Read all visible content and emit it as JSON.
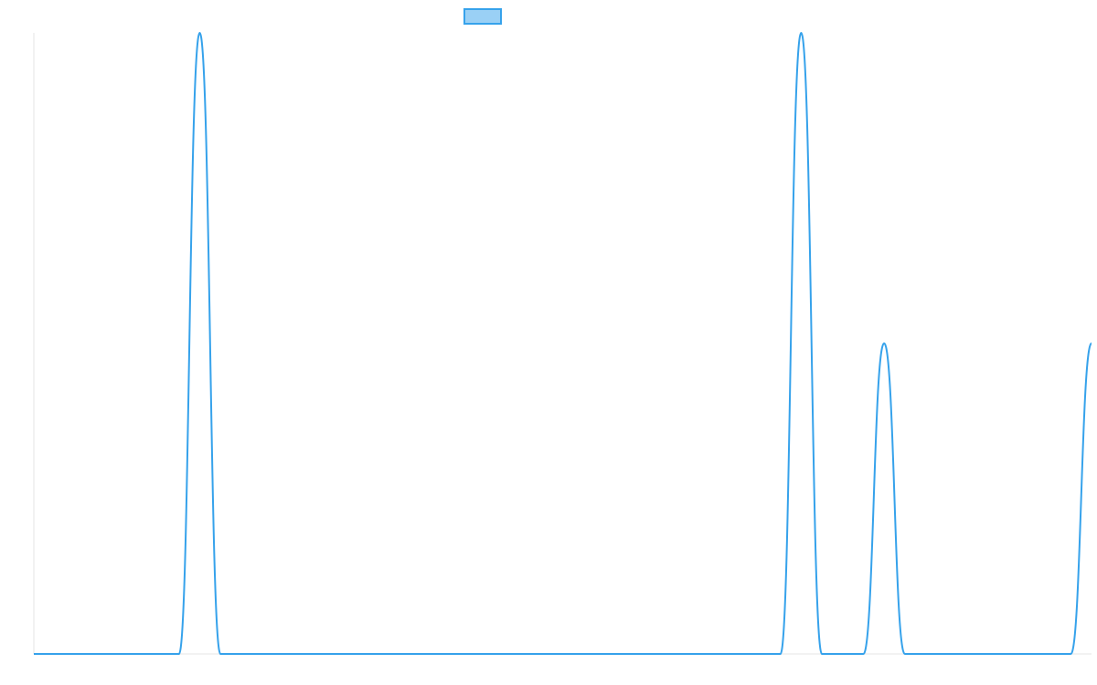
{
  "chart_data": {
    "type": "line",
    "x": [
      0,
      1,
      2,
      3,
      4,
      5,
      6,
      7,
      8,
      9,
      10,
      11,
      12,
      13,
      14,
      15,
      16,
      17,
      18,
      19,
      20,
      21,
      22,
      23,
      24,
      25,
      26,
      27,
      28,
      29,
      30,
      31,
      32,
      33,
      34,
      35,
      36,
      37,
      38,
      39,
      40,
      41,
      42,
      43,
      44,
      45,
      46,
      47,
      48,
      49,
      50,
      51
    ],
    "series": [
      {
        "values": [
          0,
          0,
          0,
          0,
          0,
          0,
          0,
          0,
          2,
          0,
          0,
          0,
          0,
          0,
          0,
          0,
          0,
          0,
          0,
          0,
          0,
          0,
          0,
          0,
          0,
          0,
          0,
          0,
          0,
          0,
          0,
          0,
          0,
          0,
          0,
          0,
          0,
          2,
          0,
          0,
          0,
          1,
          0,
          0,
          0,
          0,
          0,
          0,
          0,
          0,
          0,
          1
        ],
        "color": "#36a2eb",
        "fill": "#9ad0f5"
      }
    ],
    "xlim": [
      0,
      51
    ],
    "ylim": [
      0,
      2
    ],
    "grid": false,
    "legend": "top-center",
    "title": ""
  }
}
